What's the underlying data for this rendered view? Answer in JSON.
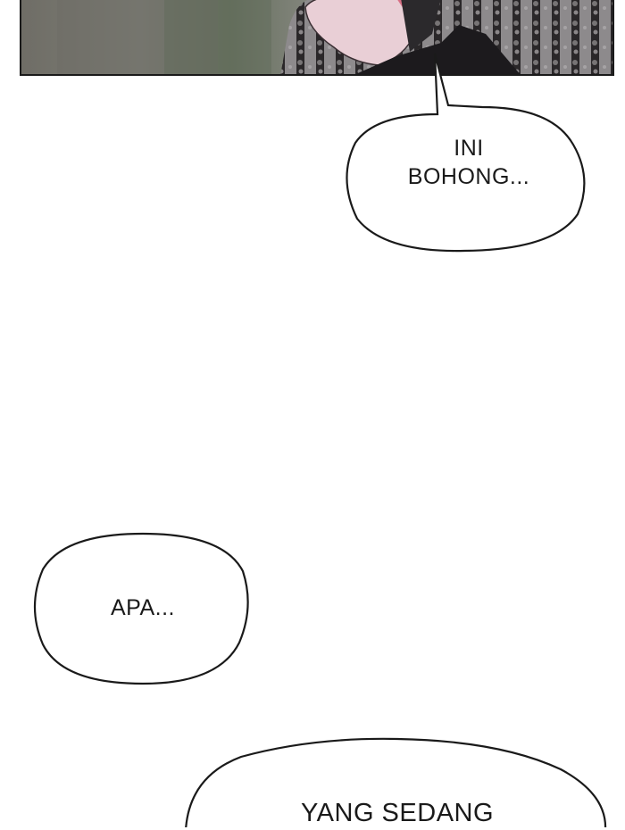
{
  "panel": {
    "description_icon": "comic-panel-image"
  },
  "bubbles": {
    "bubble1": {
      "line1": "INI",
      "line2": "BOHONG..."
    },
    "bubble2": {
      "text": "APA..."
    },
    "bubble3": {
      "text": "YANG SEDANG"
    }
  },
  "colors": {
    "ink": "#1a1a1a",
    "paper": "#ffffff",
    "panel_bg": "#6b6f6a"
  }
}
